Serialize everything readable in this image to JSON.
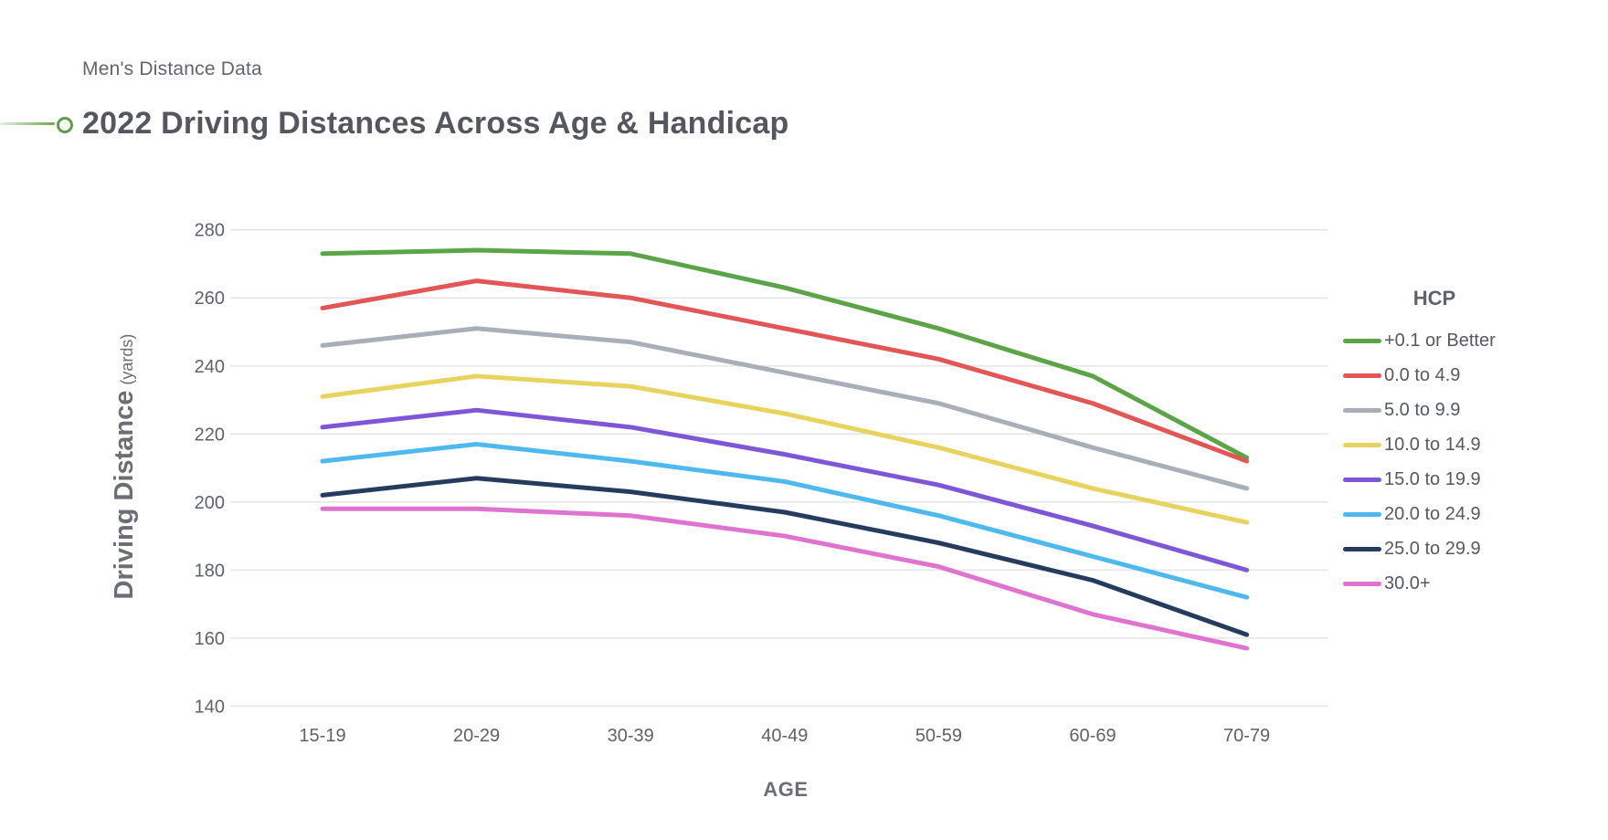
{
  "header": {
    "subtitle": "Men's Distance Data",
    "title": "2022 Driving Distances Across Age & Handicap"
  },
  "colors": {
    "accent_green": "#5f9e45",
    "grid": "#e4e5e7",
    "tick_text": "#5d6269",
    "axis_label_text": "#6a6f75",
    "title_text": "#54585e",
    "subtitle_text": "#61666c",
    "legend_text": "#55595e"
  },
  "chart_data": {
    "type": "line",
    "title": "2022 Driving Distances Across Age & Handicap",
    "subtitle": "Men's Distance Data",
    "xlabel": "AGE",
    "ylabel": "Driving Distance",
    "ylabel_unit": "(yards)",
    "categories": [
      "15-19",
      "20-29",
      "30-39",
      "40-49",
      "50-59",
      "60-69",
      "70-79"
    ],
    "ylim": [
      140,
      280
    ],
    "ytick_step": 20,
    "grid": "horizontal",
    "legend_title": "HCP",
    "legend_position": "right",
    "series": [
      {
        "name": "+0.1 or Better",
        "color": "#5ba447",
        "values": [
          273,
          274,
          273,
          263,
          251,
          237,
          213
        ]
      },
      {
        "name": "0.0 to 4.9",
        "color": "#e25656",
        "values": [
          257,
          265,
          260,
          251,
          242,
          229,
          212
        ]
      },
      {
        "name": "5.0 to 9.9",
        "color": "#a8afb8",
        "values": [
          246,
          251,
          247,
          238,
          229,
          216,
          204
        ]
      },
      {
        "name": "10.0 to 14.9",
        "color": "#e7d45f",
        "values": [
          231,
          237,
          234,
          226,
          216,
          204,
          194
        ]
      },
      {
        "name": "15.0 to 19.9",
        "color": "#7e57d6",
        "values": [
          222,
          227,
          222,
          214,
          205,
          193,
          180
        ]
      },
      {
        "name": "20.0 to 24.9",
        "color": "#4eb9ee",
        "values": [
          212,
          217,
          212,
          206,
          196,
          184,
          172
        ]
      },
      {
        "name": "25.0 to 29.9",
        "color": "#253c5f",
        "values": [
          202,
          207,
          203,
          197,
          188,
          177,
          161
        ]
      },
      {
        "name": "30.0+",
        "color": "#de74cf",
        "values": [
          198,
          198,
          196,
          190,
          181,
          167,
          157
        ]
      }
    ]
  }
}
